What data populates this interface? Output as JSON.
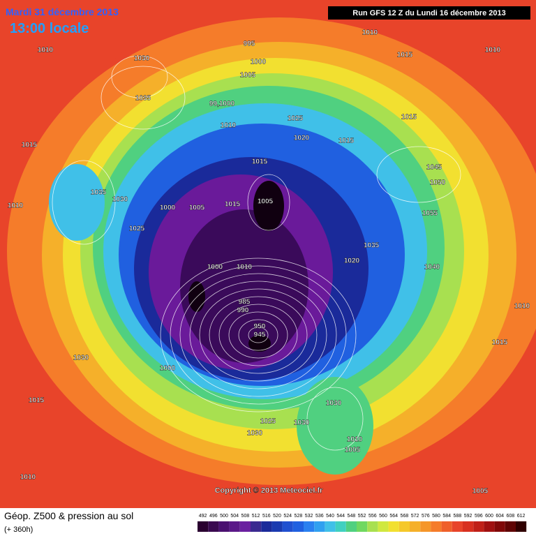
{
  "header": {
    "date": "Mardi 31 décembre 2013",
    "time": "13:00 locale",
    "run": "Run GFS 12 Z du Lundi 16 décembre 2013"
  },
  "copyright": "Copyright © 2013 Meteociel.fr",
  "footer": {
    "title": "Géop. Z500 & pression au sol",
    "subtitle": "(+ 360h)"
  },
  "legend": {
    "labels": [
      "492",
      "496",
      "500",
      "504",
      "508",
      "512",
      "516",
      "520",
      "524",
      "528",
      "532",
      "536",
      "540",
      "544",
      "548",
      "552",
      "556",
      "560",
      "564",
      "568",
      "572",
      "576",
      "580",
      "584",
      "588",
      "592",
      "596",
      "600",
      "604",
      "608",
      "612"
    ],
    "colors": [
      "#2a0030",
      "#3a0a50",
      "#4a1070",
      "#5a1888",
      "#6a20a0",
      "#3a2a90",
      "#1a2a9a",
      "#1a3ab0",
      "#2050d0",
      "#2060e0",
      "#2a80f0",
      "#30a0f0",
      "#40c0e8",
      "#40d0c0",
      "#50d080",
      "#70d860",
      "#a8e050",
      "#d0e840",
      "#f2e030",
      "#f5c82a",
      "#f5b02a",
      "#f5962a",
      "#f57c2a",
      "#ef602a",
      "#e8442a",
      "#d83020",
      "#c02018",
      "#a01010",
      "#800808",
      "#600404",
      "#300000"
    ]
  },
  "isobar_labels": [
    "1010",
    "1030",
    "1035",
    "995",
    "1000",
    "1005",
    "1010",
    "1015",
    "1010",
    "99,1000",
    "1010",
    "1025",
    "1020",
    "1015",
    "1015",
    "1015",
    "1015",
    "1045",
    "1050",
    "1035",
    "1030",
    "1010",
    "1000",
    "1005",
    "1015",
    "1005",
    "1055",
    "1025",
    "1035",
    "1020",
    "1000",
    "1010",
    "1040",
    "1010",
    "1015",
    "1030",
    "1000",
    "1015",
    "1030",
    "1030",
    "1025",
    "1030",
    "1010",
    "1005",
    "1010",
    "1005",
    "985",
    "990",
    "950",
    "945"
  ]
}
